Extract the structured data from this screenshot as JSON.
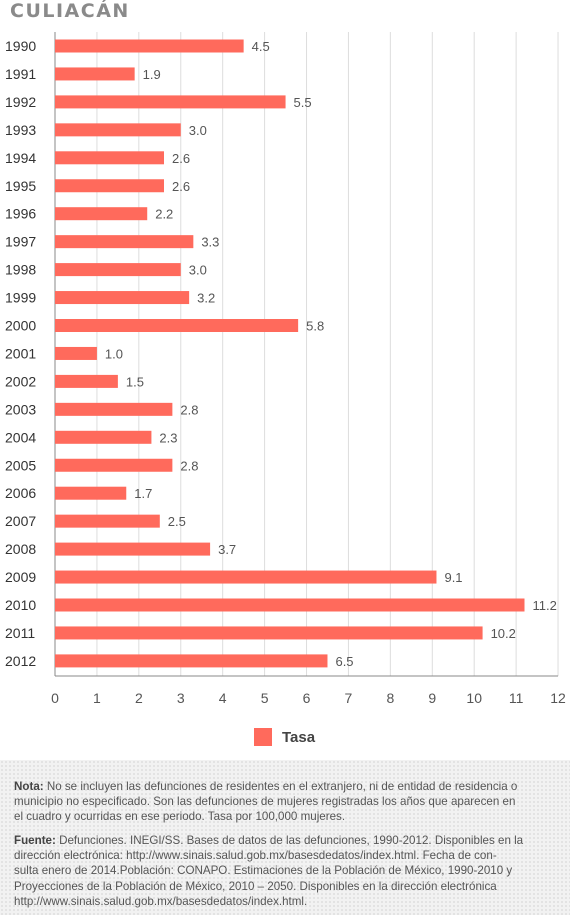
{
  "chart_data": {
    "type": "bar",
    "orientation": "horizontal",
    "title": "CULIACÁN",
    "categories": [
      "1990",
      "1991",
      "1992",
      "1993",
      "1994",
      "1995",
      "1996",
      "1997",
      "1998",
      "1999",
      "2000",
      "2001",
      "2002",
      "2003",
      "2004",
      "2005",
      "2006",
      "2007",
      "2008",
      "2009",
      "2010",
      "2011",
      "2012"
    ],
    "values": [
      4.5,
      1.9,
      5.5,
      3.0,
      2.6,
      2.6,
      2.2,
      3.3,
      3.0,
      3.2,
      5.8,
      1.0,
      1.5,
      2.8,
      2.3,
      2.8,
      1.7,
      2.5,
      3.7,
      9.1,
      11.2,
      10.2,
      6.5
    ],
    "value_labels": [
      "4.5",
      "1.9",
      "5.5",
      "3.0",
      "2.6",
      "2.6",
      "2.2",
      "3.3",
      "3.0",
      "3.2",
      "5.8",
      "1.0",
      "1.5",
      "2.8",
      "2.3",
      "2.8",
      "1.7",
      "2.5",
      "3.7",
      "9.1",
      "11.2",
      "10.2",
      "6.5"
    ],
    "series_name": "Tasa",
    "xlim": [
      0,
      12
    ],
    "x_ticks": [
      0,
      1,
      2,
      3,
      4,
      5,
      6,
      7,
      8,
      9,
      10,
      11,
      12
    ],
    "grid": true,
    "legend": "bottom-center",
    "colors": {
      "bar": "#ff6a5c",
      "grid": "#dddddd",
      "axis": "#888888"
    }
  },
  "notes": {
    "nota_label": "Nota:",
    "nota_lines": [
      " No se incluyen las defunciones de residentes en el extranjero, ni de entidad de residencia o",
      "municipio no especificado. Son las defunciones de mujeres registradas los años que aparecen en",
      "el cuadro y ocurridas en ese periodo. Tasa por 100,000 mujeres."
    ],
    "fuente_label": "Fuente:",
    "fuente_lines": [
      " Defunciones. INEGI/SS. Bases de datos de las defunciones, 1990-2012. Disponibles en la",
      "dirección electrónica: http://www.sinais.salud.gob.mx/basesdedatos/index.html. Fecha de con-",
      "sulta enero de 2014.Población: CONAPO. Estimaciones de la Población de México, 1990-2010 y",
      "Proyecciones de la Población de México, 2010 – 2050. Disponibles en la dirección electrónica",
      "http://www.sinais.salud.gob.mx/basesdedatos/index.html."
    ]
  }
}
